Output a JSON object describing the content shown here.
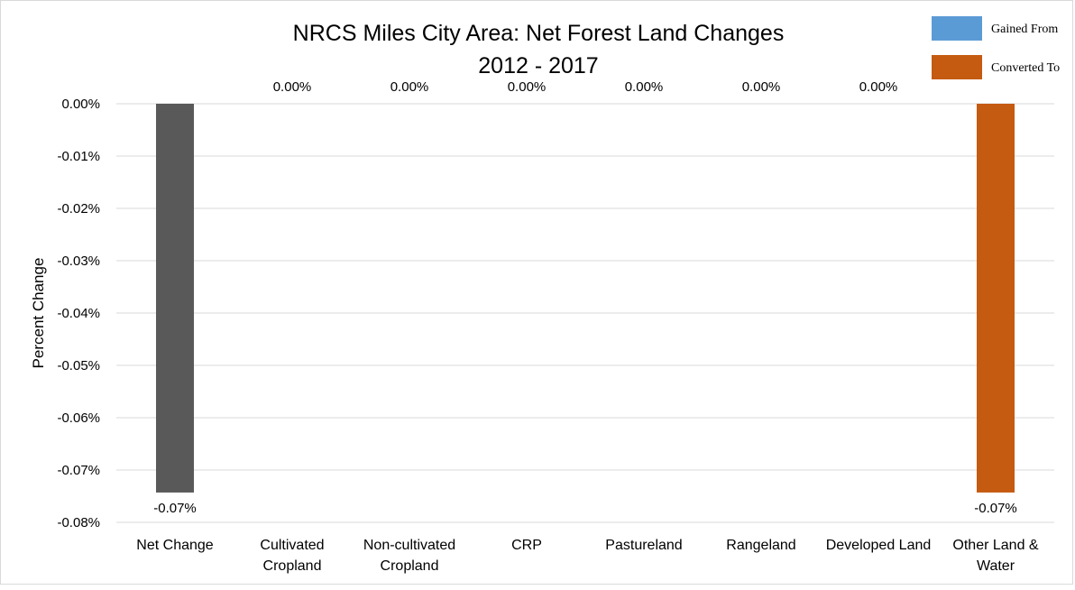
{
  "chart_data": {
    "type": "bar",
    "title": [
      "NRCS Miles City Area: Net Forest Land Changes",
      "2012 - 2017"
    ],
    "ylabel": "Percent Change",
    "xlabel": "",
    "ylim": [
      -0.08,
      0.0
    ],
    "yticks": [
      0.0,
      -0.01,
      -0.02,
      -0.03,
      -0.04,
      -0.05,
      -0.06,
      -0.07,
      -0.08
    ],
    "ytick_labels": [
      "0.00%",
      "-0.01%",
      "-0.02%",
      "-0.03%",
      "-0.04%",
      "-0.05%",
      "-0.06%",
      "-0.07%",
      "-0.08%"
    ],
    "grid": true,
    "legend_position": "top-right",
    "categories": [
      [
        "Net Change"
      ],
      [
        "Cultivated",
        "Cropland"
      ],
      [
        "Non-cultivated",
        "Cropland"
      ],
      [
        "CRP"
      ],
      [
        "Pastureland"
      ],
      [
        "Rangeland"
      ],
      [
        "Developed Land"
      ],
      [
        "Other Land &",
        "Water"
      ]
    ],
    "values": [
      -0.0743,
      0.0,
      0.0,
      0.0,
      0.0,
      0.0,
      0.0,
      -0.0743
    ],
    "data_labels": [
      "-0.07%",
      "0.00%",
      "0.00%",
      "0.00%",
      "0.00%",
      "0.00%",
      "0.00%",
      "-0.07%"
    ],
    "bar_colors": [
      "#595959",
      "#c55a11",
      "#c55a11",
      "#c55a11",
      "#c55a11",
      "#c55a11",
      "#c55a11",
      "#c55a11"
    ],
    "legend": [
      {
        "name": "Gained From",
        "color": "#5b9bd5"
      },
      {
        "name": "Converted To",
        "color": "#c55a11"
      }
    ]
  },
  "colors": {
    "gridline": "#d9d9d9",
    "net_change": "#595959",
    "gained_from": "#5b9bd5",
    "converted_to": "#c55a11"
  }
}
